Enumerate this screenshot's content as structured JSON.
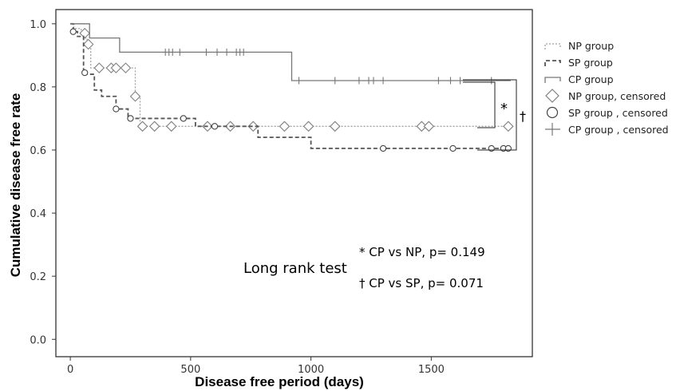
{
  "chart_data": {
    "type": "line",
    "title": "",
    "xlabel": "Disease free period (days)",
    "ylabel": "Cumulative disease free rate",
    "xlim": [
      -60,
      1920
    ],
    "ylim": [
      -0.055,
      1.045
    ],
    "x_ticks": [
      0,
      500,
      1000,
      1500
    ],
    "x_tick_labels": [
      "0",
      "500",
      "1000",
      "1500"
    ],
    "y_ticks": [
      0.0,
      0.2,
      0.4,
      0.6,
      0.8,
      1.0
    ],
    "y_tick_labels": [
      "0.0",
      "0.2",
      "0.4",
      "0.6",
      "0.8",
      "1.0"
    ],
    "grid": false,
    "legend_position": "right",
    "colors": {
      "np": "#a0a0a0",
      "sp": "#555555",
      "cp": "#777777"
    },
    "series": [
      {
        "name": "NP group",
        "key": "np",
        "steps": [
          [
            0,
            1.0
          ],
          [
            15,
            0.985
          ],
          [
            45,
            0.97
          ],
          [
            60,
            0.955
          ],
          [
            70,
            0.93
          ],
          [
            85,
            0.86
          ],
          [
            270,
            0.77
          ],
          [
            290,
            0.675
          ],
          [
            1830,
            0.675
          ]
        ],
        "censored_name": "NP group, censored",
        "censored": [
          [
            60,
            0.97
          ],
          [
            75,
            0.935
          ],
          [
            120,
            0.86
          ],
          [
            170,
            0.86
          ],
          [
            190,
            0.86
          ],
          [
            230,
            0.86
          ],
          [
            270,
            0.77
          ],
          [
            300,
            0.675
          ],
          [
            350,
            0.675
          ],
          [
            420,
            0.675
          ],
          [
            570,
            0.675
          ],
          [
            665,
            0.675
          ],
          [
            760,
            0.675
          ],
          [
            890,
            0.675
          ],
          [
            990,
            0.675
          ],
          [
            1100,
            0.675
          ],
          [
            1460,
            0.675
          ],
          [
            1490,
            0.675
          ],
          [
            1820,
            0.675
          ]
        ]
      },
      {
        "name": "SP group",
        "key": "sp",
        "steps": [
          [
            0,
            1.0
          ],
          [
            12,
            0.975
          ],
          [
            30,
            0.96
          ],
          [
            55,
            0.84
          ],
          [
            100,
            0.79
          ],
          [
            130,
            0.77
          ],
          [
            190,
            0.73
          ],
          [
            240,
            0.7
          ],
          [
            520,
            0.675
          ],
          [
            780,
            0.64
          ],
          [
            1000,
            0.605
          ],
          [
            1830,
            0.605
          ]
        ],
        "censored_name": "SP group , censored",
        "censored": [
          [
            12,
            0.975
          ],
          [
            60,
            0.845
          ],
          [
            190,
            0.73
          ],
          [
            250,
            0.7
          ],
          [
            470,
            0.7
          ],
          [
            600,
            0.675
          ],
          [
            1300,
            0.605
          ],
          [
            1590,
            0.605
          ],
          [
            1750,
            0.605
          ],
          [
            1800,
            0.605
          ],
          [
            1820,
            0.605
          ]
        ]
      },
      {
        "name": "CP group",
        "key": "cp",
        "steps": [
          [
            0,
            1.0
          ],
          [
            80,
            0.955
          ],
          [
            205,
            0.91
          ],
          [
            920,
            0.82
          ],
          [
            1830,
            0.82
          ]
        ],
        "censored_name": "CP group , censored",
        "censored": [
          [
            395,
            0.91
          ],
          [
            410,
            0.91
          ],
          [
            425,
            0.91
          ],
          [
            455,
            0.91
          ],
          [
            565,
            0.91
          ],
          [
            610,
            0.91
          ],
          [
            650,
            0.91
          ],
          [
            690,
            0.91
          ],
          [
            705,
            0.91
          ],
          [
            720,
            0.91
          ],
          [
            950,
            0.82
          ],
          [
            1100,
            0.82
          ],
          [
            1200,
            0.82
          ],
          [
            1240,
            0.82
          ],
          [
            1260,
            0.82
          ],
          [
            1300,
            0.82
          ],
          [
            1530,
            0.82
          ],
          [
            1580,
            0.82
          ],
          [
            1620,
            0.82
          ],
          [
            1750,
            0.82
          ]
        ]
      }
    ],
    "annotations": {
      "test_name": "Long rank test",
      "comparison_np": "* CP vs NP, p= 0.149",
      "comparison_sp": "† CP vs SP, p= 0.071",
      "bracket_np_marker": "*",
      "bracket_sp_marker": "†"
    }
  }
}
